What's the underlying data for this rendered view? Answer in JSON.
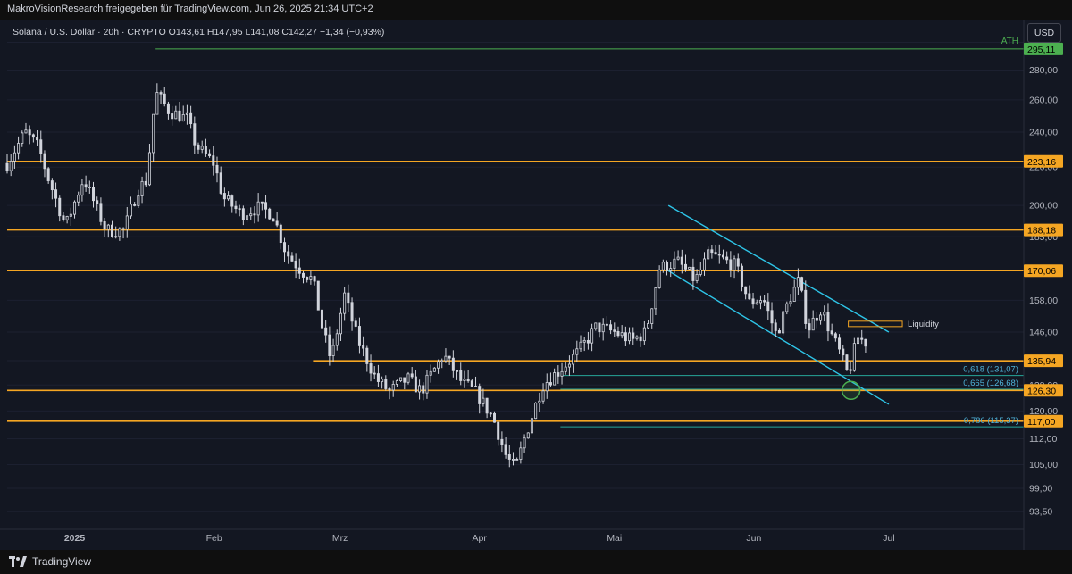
{
  "attribution": "MakroVisionResearch freigegeben für TradingView.com, Jun 26, 2025 21:34 UTC+2",
  "legend": "Solana / U.S. Dollar · 20h · CRYPTO  O143,61  H147,95  L141,08  C142,27  −1,34 (−0,93%)",
  "currency_button": "USD",
  "footer_brand": "TradingView",
  "colors": {
    "background": "#131722",
    "candle": "#d1d4dc",
    "level": "#f5a623",
    "channel": "#2ec5e8",
    "fib": "#26a69a",
    "ath": "#4caf50"
  },
  "chart_data": {
    "type": "candlestick",
    "symbol": "Solana / U.S. Dollar",
    "interval": "20h",
    "ohlc": {
      "open": 143.61,
      "high": 147.95,
      "low": 141.08,
      "close": 142.27,
      "change": -1.34,
      "change_pct": -0.93
    },
    "scale": "log",
    "y_range": [
      90,
      305
    ],
    "x_range": [
      "2024-12-17",
      "2025-07-31"
    ],
    "x_ticks": [
      {
        "label": "2025",
        "date": "2025-01-01"
      },
      {
        "label": "Feb",
        "date": "2025-02-01"
      },
      {
        "label": "Mrz",
        "date": "2025-03-01"
      },
      {
        "label": "Apr",
        "date": "2025-04-01"
      },
      {
        "label": "Mai",
        "date": "2025-05-01"
      },
      {
        "label": "Jun",
        "date": "2025-06-01"
      },
      {
        "label": "Jul",
        "date": "2025-07-01"
      }
    ],
    "y_ticks": [
      {
        "label": "300,00",
        "value": 300
      },
      {
        "label": "280,00",
        "value": 280
      },
      {
        "label": "260,00",
        "value": 260
      },
      {
        "label": "240,00",
        "value": 240
      },
      {
        "label": "220,00",
        "value": 220
      },
      {
        "label": "200,00",
        "value": 200
      },
      {
        "label": "185,00",
        "value": 185
      },
      {
        "label": "170,00",
        "value": 170
      },
      {
        "label": "158,00",
        "value": 158
      },
      {
        "label": "146,00",
        "value": 146
      },
      {
        "label": "136,00",
        "value": 136
      },
      {
        "label": "128,00",
        "value": 128
      },
      {
        "label": "120,00",
        "value": 120
      },
      {
        "label": "112,00",
        "value": 112
      },
      {
        "label": "105,00",
        "value": 105
      },
      {
        "label": "99,00",
        "value": 99
      },
      {
        "label": "93,50",
        "value": 93.5
      }
    ],
    "price_path": [
      [
        "2024-12-17",
        222
      ],
      [
        "2024-12-21",
        240
      ],
      [
        "2024-12-24",
        231
      ],
      [
        "2024-12-26",
        215
      ],
      [
        "2024-12-30",
        190
      ],
      [
        "2025-01-03",
        214
      ],
      [
        "2025-01-08",
        188
      ],
      [
        "2025-01-12",
        188
      ],
      [
        "2025-01-15",
        208
      ],
      [
        "2025-01-17",
        213
      ],
      [
        "2025-01-19",
        265
      ],
      [
        "2025-01-22",
        253
      ],
      [
        "2025-01-26",
        248
      ],
      [
        "2025-01-28",
        232
      ],
      [
        "2025-02-01",
        222
      ],
      [
        "2025-02-03",
        204
      ],
      [
        "2025-02-07",
        196
      ],
      [
        "2025-02-11",
        199
      ],
      [
        "2025-02-14",
        196
      ],
      [
        "2025-02-17",
        178
      ],
      [
        "2025-02-20",
        171
      ],
      [
        "2025-02-23",
        166
      ],
      [
        "2025-02-25",
        148
      ],
      [
        "2025-02-27",
        136
      ],
      [
        "2025-03-02",
        160
      ],
      [
        "2025-03-05",
        143
      ],
      [
        "2025-03-09",
        130
      ],
      [
        "2025-03-12",
        126
      ],
      [
        "2025-03-16",
        130
      ],
      [
        "2025-03-19",
        126
      ],
      [
        "2025-03-24",
        138
      ],
      [
        "2025-03-28",
        129
      ],
      [
        "2025-03-31",
        126
      ],
      [
        "2025-04-04",
        118
      ],
      [
        "2025-04-07",
        107
      ],
      [
        "2025-04-09",
        104
      ],
      [
        "2025-04-11",
        112
      ],
      [
        "2025-04-15",
        128
      ],
      [
        "2025-04-19",
        133
      ],
      [
        "2025-04-23",
        139
      ],
      [
        "2025-04-27",
        148
      ],
      [
        "2025-05-01",
        146
      ],
      [
        "2025-05-05",
        143
      ],
      [
        "2025-05-08",
        146
      ],
      [
        "2025-05-11",
        171
      ],
      [
        "2025-05-15",
        174
      ],
      [
        "2025-05-19",
        166
      ],
      [
        "2025-05-22",
        177
      ],
      [
        "2025-05-25",
        175
      ],
      [
        "2025-05-28",
        172
      ],
      [
        "2025-05-31",
        157
      ],
      [
        "2025-06-03",
        159
      ],
      [
        "2025-06-06",
        145
      ],
      [
        "2025-06-09",
        159
      ],
      [
        "2025-06-11",
        166
      ],
      [
        "2025-06-13",
        147
      ],
      [
        "2025-06-16",
        155
      ],
      [
        "2025-06-18",
        146
      ],
      [
        "2025-06-20",
        139
      ],
      [
        "2025-06-22",
        131
      ],
      [
        "2025-06-24",
        144
      ],
      [
        "2025-06-26",
        142.27
      ]
    ],
    "levels": [
      {
        "label": "223,16",
        "value": 223.16,
        "from": "2024-12-17"
      },
      {
        "label": "188,18",
        "value": 188.18,
        "from": "2024-12-17"
      },
      {
        "label": "170,06",
        "value": 170.06,
        "from": "2024-12-17"
      },
      {
        "label": "135,94",
        "value": 135.94,
        "from": "2025-02-23"
      },
      {
        "label": "126,30",
        "value": 126.3,
        "from": "2024-12-17"
      },
      {
        "label": "117,00",
        "value": 117.0,
        "from": "2024-12-17"
      }
    ],
    "ath": {
      "text": "ATH",
      "label": "295,11",
      "value": 295.11,
      "from": "2025-01-19"
    },
    "fib_levels": [
      {
        "label": "0,618 (131,07)",
        "value": 131.07,
        "from": "2025-04-19"
      },
      {
        "label": "0,665 (126,68)",
        "value": 126.68,
        "from": "2025-04-19"
      },
      {
        "label": "0,786 (115,37)",
        "value": 115.37,
        "from": "2025-04-19"
      }
    ],
    "liquidity": {
      "label": "Liquidity",
      "top": 150,
      "bottom": 148,
      "from": "2025-06-22",
      "to": "2025-07-04"
    },
    "channel": [
      {
        "from": [
          "2025-05-13",
          200
        ],
        "to": [
          "2025-07-01",
          146
        ]
      },
      {
        "from": [
          "2025-05-13",
          170
        ],
        "to": [
          "2025-07-01",
          122
        ]
      }
    ],
    "highlight": {
      "date": "2025-06-22",
      "value": 126.3
    }
  }
}
